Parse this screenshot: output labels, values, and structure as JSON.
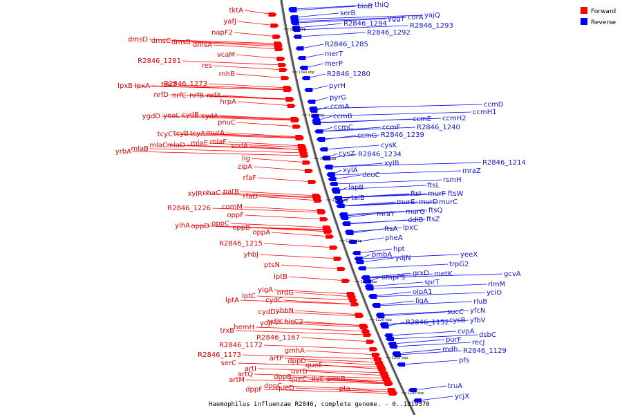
{
  "caption": "Haemophilus influenzae R2846, complete genome. - 0..1819370",
  "legend": [
    {
      "label": "Forward",
      "color": "#ff0000"
    },
    {
      "label": "Reverse",
      "color": "#0000ff"
    }
  ],
  "ticks": [
    "1360 kbp",
    "1340 kbp",
    "1320 kbp",
    "1300 kbp",
    "1280 kbp",
    "1260 kbp",
    "1240 kbp",
    "1220 kbp",
    "1200 kbp",
    "1180 kbp"
  ],
  "forward_labels": [
    "tktA",
    "yafJ",
    "napF2",
    "dmsD",
    "dmsC",
    "dmsB",
    "dmsA",
    "vcaM",
    "R2846_1281",
    "res",
    "rnhB",
    "lpxB",
    "lpxA",
    "fabZ",
    "R2846_1273",
    "nrfD",
    "nrfC",
    "nrfB",
    "nrfA",
    "hrpA",
    "ygdD",
    "yeaL",
    "cydB",
    "cydA",
    "pnuC",
    "tcyC",
    "tcyB",
    "tcyA",
    "murA",
    "yrbA",
    "mlaB",
    "mlaC",
    "mlaD",
    "mlaE",
    "mlaF",
    "sodA",
    "lig",
    "zipA",
    "rfaF",
    "xylR",
    "nhaC",
    "patB",
    "rfaD",
    "R2846_1226",
    "comM",
    "oppF",
    "yihA",
    "oppD",
    "oppC",
    "oppB",
    "oppA",
    "R2846_1215",
    "yhbJ",
    "ptsN",
    "lptB",
    "lptA",
    "lptC",
    "yigA",
    "nrdG",
    "cydC",
    "cydD",
    "ybbN",
    "trxB",
    "hemH",
    "ydjI",
    "ydjK",
    "hisC2",
    "R2846_1167",
    "R2846_1172",
    "R2846_1173",
    "gmhA",
    "serC",
    "artI",
    "artP",
    "dppD",
    "artQ",
    "artM",
    "dppB",
    "uvrD",
    "queE",
    "dppF",
    "dppC",
    "queC",
    "queD",
    "ilvE",
    "prmB",
    "pta"
  ],
  "reverse_labels": [
    "bioB",
    "thiQ",
    "serB",
    "yggT",
    "corA",
    "yajQ",
    "R2846_1294",
    "R2846_1293",
    "R2846_1292",
    "R2846_1285",
    "merT",
    "merP",
    "R2846_1280",
    "pyrH",
    "pyrG",
    "ccmA",
    "ccmB",
    "ccmC",
    "ccmD",
    "ccmH1",
    "ccmH2",
    "ccmE",
    "ccmF",
    "R2846_1240",
    "ccmG",
    "R2846_1239",
    "cysK",
    "cysZ",
    "R2846_1234",
    "xylB",
    "xylA",
    "deoC",
    "R2846_1214",
    "mraZ",
    "rsmH",
    "lapB",
    "talB",
    "ftsL",
    "ftsI",
    "murF",
    "ftsW",
    "murE",
    "murD",
    "murC",
    "mraY",
    "murG",
    "ftsQ",
    "ddlB",
    "ftsZ",
    "ftsA",
    "lpxC",
    "pheA",
    "hpt",
    "pmbA",
    "ydjN",
    "yeeX",
    "trpG2",
    "grxD",
    "metK",
    "ompP5",
    "sprT",
    "olpA1",
    "ligA",
    "gcvA",
    "rlmM",
    "yciO",
    "rluB",
    "yfcN",
    "sucC",
    "cysB",
    "yfbV",
    "R2846_1152",
    "cvpA",
    "dsbC",
    "purF",
    "recJ",
    "mdh",
    "R2846_1129",
    "pfs",
    "truA",
    "ycjX"
  ]
}
